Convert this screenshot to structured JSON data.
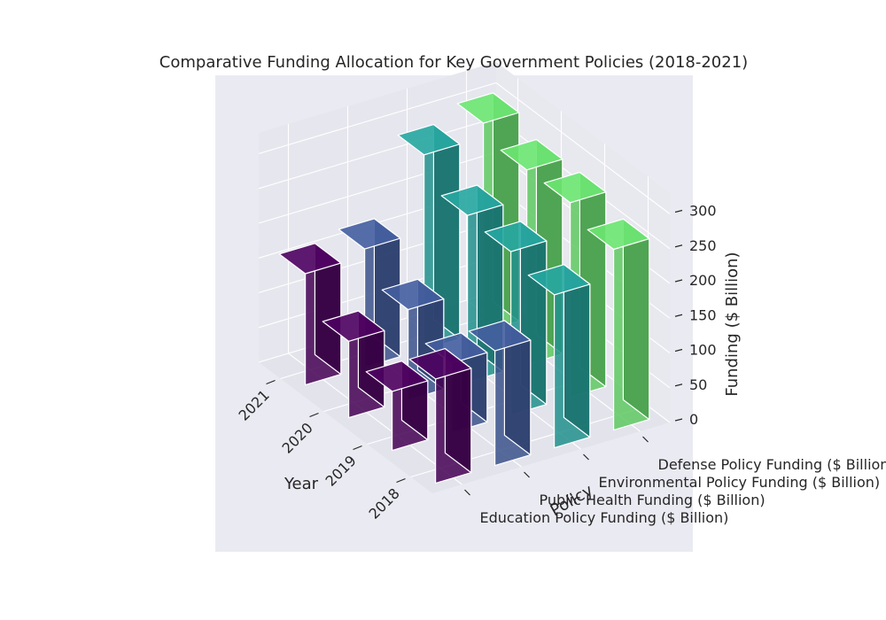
{
  "chart_data": {
    "type": "bar3d",
    "title": "Comparative Funding Allocation for Key Government Policies (2018-2021)",
    "xlabel": "Year",
    "ylabel": "Policy",
    "zlabel": "Funding ($ Billion)",
    "years": [
      "2018",
      "2019",
      "2020",
      "2021"
    ],
    "policies": [
      "Education Policy Funding ($ Billion)",
      "Public Health Funding ($ Billion)",
      "Environmental Policy Funding ($ Billion)",
      "Defense Policy Funding ($ Billion)"
    ],
    "zticks": [
      "0",
      "50",
      "100",
      "150",
      "200",
      "250",
      "300"
    ],
    "zlim": [
      0,
      330
    ],
    "series": [
      {
        "values": [
          150,
          85,
          110,
          160
        ],
        "color": "#440154"
      },
      {
        "values": [
          165,
          100,
          130,
          170
        ],
        "color": "#3b528b"
      },
      {
        "values": [
          220,
          235,
          240,
          280
        ],
        "color": "#21918c"
      },
      {
        "values": [
          260,
          280,
          280,
          300
        ],
        "color": "#5ec962"
      }
    ],
    "grid": true,
    "pane_color": "#eaeaf2"
  }
}
